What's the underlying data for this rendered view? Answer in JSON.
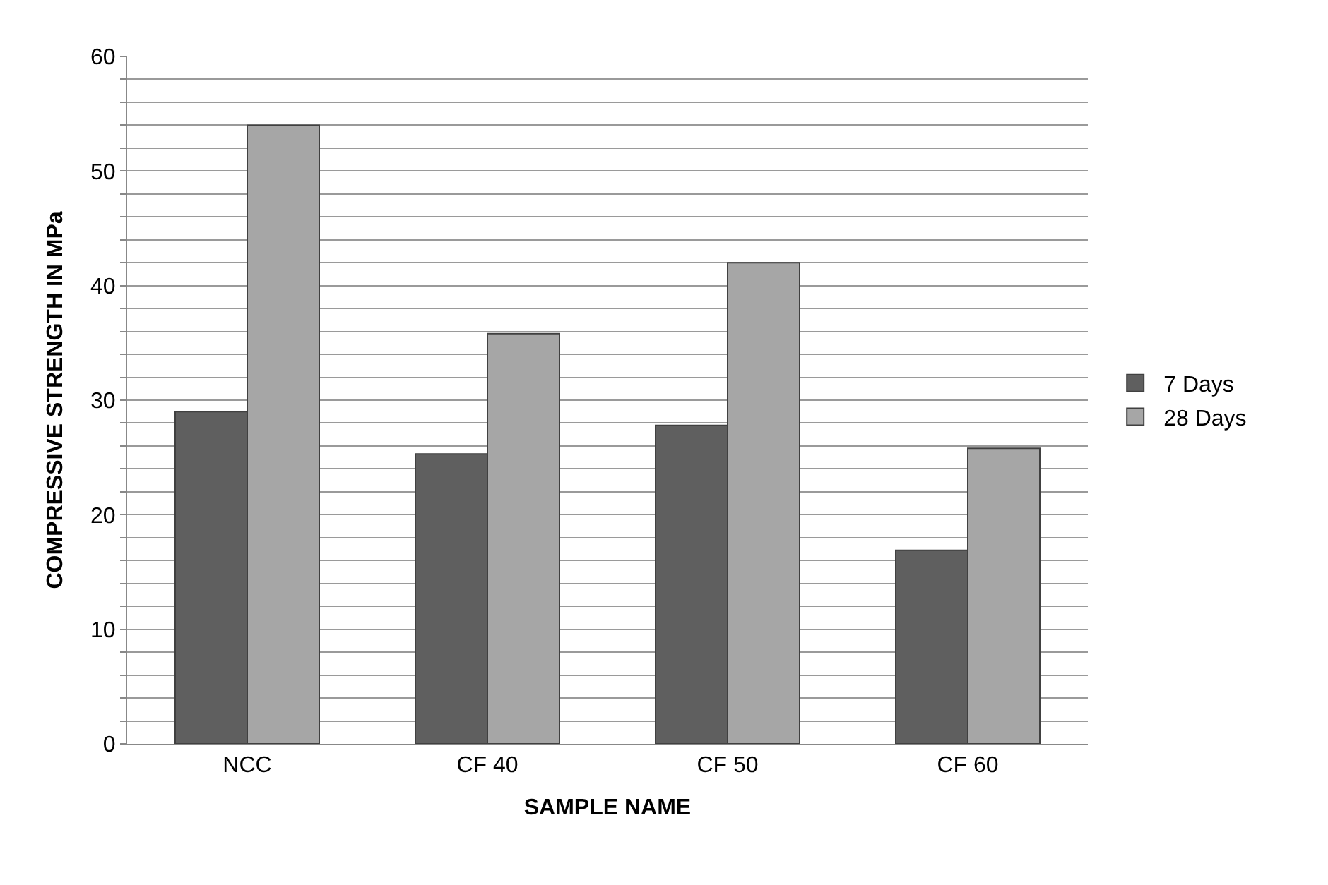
{
  "chart_data": {
    "type": "bar",
    "xlabel": "SAMPLE NAME",
    "ylabel": "COMPRESSIVE STRENGTH IN MPa",
    "categories": [
      "NCC",
      "CF 40",
      "CF 50",
      "CF 60"
    ],
    "series": [
      {
        "name": "7 Days",
        "color": "#5f5f5f",
        "values": [
          29,
          25.3,
          27.8,
          16.9
        ]
      },
      {
        "name": "28 Days",
        "color": "#a6a6a6",
        "values": [
          54,
          35.8,
          42,
          25.8
        ]
      }
    ],
    "ylim": [
      0,
      60
    ],
    "yticks": [
      0,
      {
        "value": 2,
        "label": null
      },
      {
        "value": 4,
        "label": null
      },
      {
        "value": 6,
        "label": null
      },
      {
        "value": 8,
        "label": null
      },
      10,
      {
        "value": 12,
        "label": null
      },
      {
        "value": 14,
        "label": null
      },
      {
        "value": 16,
        "label": null
      },
      {
        "value": 18,
        "label": null
      },
      20,
      {
        "value": 22,
        "label": null
      },
      {
        "value": 24,
        "label": null
      },
      {
        "value": 26,
        "label": null
      },
      {
        "value": 28,
        "label": null
      },
      30,
      {
        "value": 32,
        "label": null
      },
      {
        "value": 34,
        "label": null
      },
      {
        "value": 36,
        "label": null
      },
      {
        "value": 38,
        "label": null
      },
      40,
      {
        "value": 42,
        "label": null
      },
      {
        "value": 44,
        "label": null
      },
      {
        "value": 46,
        "label": null
      },
      {
        "value": 48,
        "label": null
      },
      50,
      {
        "value": 52,
        "label": null
      },
      {
        "value": 54,
        "label": null
      },
      {
        "value": 56,
        "label": null
      },
      {
        "value": 58,
        "label": null
      },
      60
    ],
    "grid": "y",
    "legend": "right"
  }
}
